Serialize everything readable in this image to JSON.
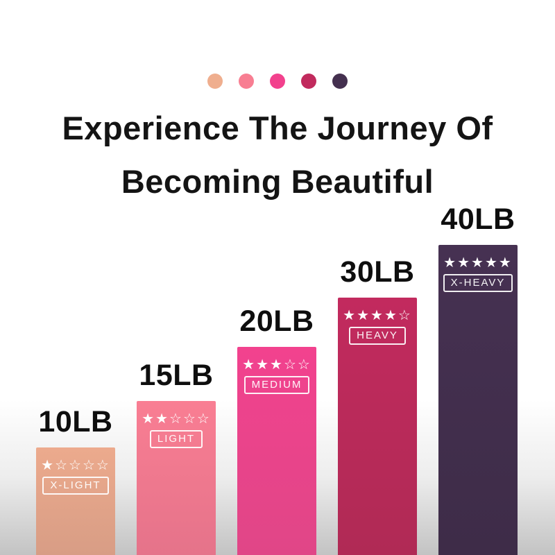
{
  "palette_dots": [
    "#EFAE8E",
    "#F87E92",
    "#F2418D",
    "#C12A5D",
    "#44304F"
  ],
  "title": {
    "line1": "Experience The Journey Of",
    "line2": "Becoming Beautiful"
  },
  "chart_data": {
    "type": "bar",
    "title": "Experience The Journey Of Becoming Beautiful",
    "categories": [
      "10LB",
      "15LB",
      "20LB",
      "30LB",
      "40LB"
    ],
    "values": [
      10,
      15,
      20,
      30,
      40
    ],
    "unit": "LB",
    "xlabel": "",
    "ylabel": "",
    "grid": false,
    "legend_position": "none",
    "bars": [
      {
        "label": "10LB",
        "weight_lb": 10,
        "stars": 1,
        "max_stars": 5,
        "level": "X-LIGHT",
        "color_top": "#ECAA8D",
        "color_bottom": "#D89D85"
      },
      {
        "label": "15LB",
        "weight_lb": 15,
        "stars": 2,
        "max_stars": 5,
        "level": "LIGHT",
        "color_top": "#F97E93",
        "color_bottom": "#E5738A"
      },
      {
        "label": "20LB",
        "weight_lb": 20,
        "stars": 3,
        "max_stars": 5,
        "level": "MEDIUM",
        "color_top": "#F2428E",
        "color_bottom": "#E04687"
      },
      {
        "label": "30LB",
        "weight_lb": 30,
        "stars": 4,
        "max_stars": 5,
        "level": "HEAVY",
        "color_top": "#C22A5E",
        "color_bottom": "#B02A55"
      },
      {
        "label": "40LB",
        "weight_lb": 40,
        "stars": 5,
        "max_stars": 5,
        "level": "X-HEAVY",
        "color_top": "#463152",
        "color_bottom": "#3E2C48"
      }
    ]
  }
}
